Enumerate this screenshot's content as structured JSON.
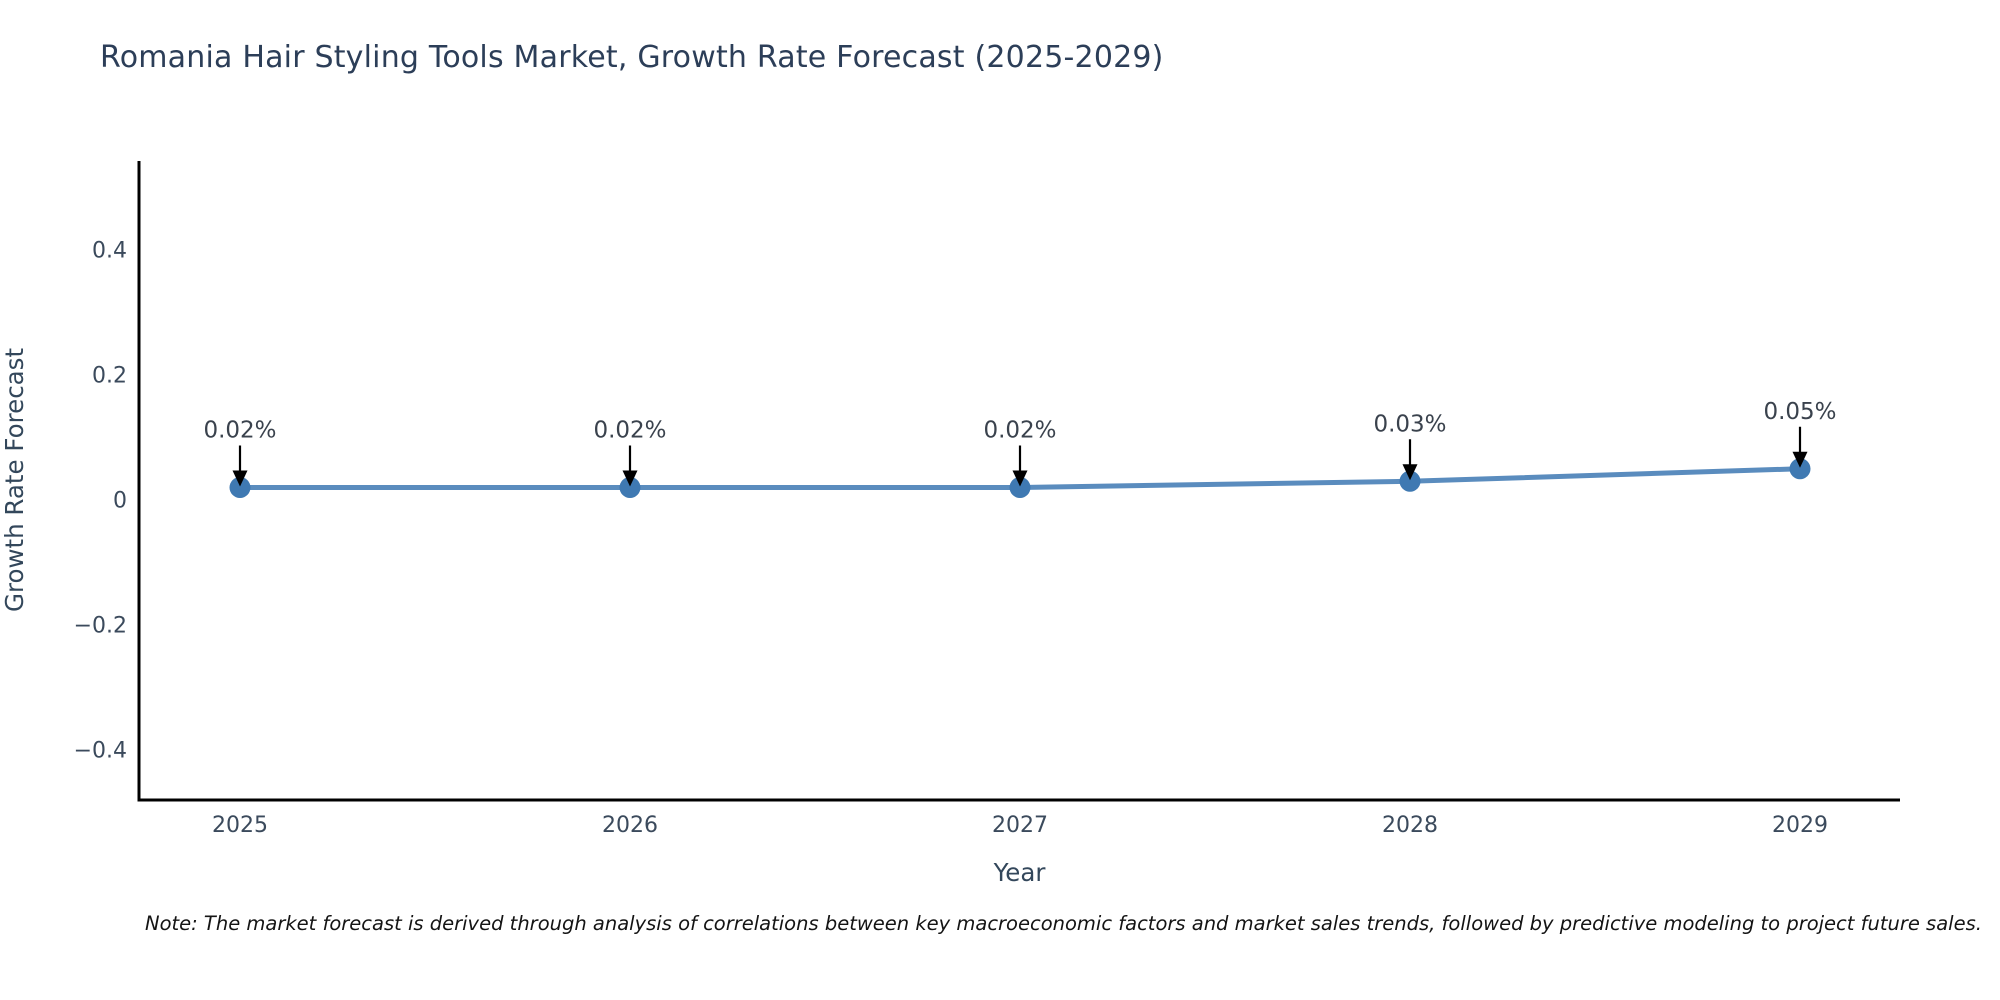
{
  "page": {
    "title": "Romania Hair Styling Tools Market, Growth Rate Forecast (2025-2029)",
    "note": "Note: The market forecast is derived through analysis of correlations between key macroeconomic factors and market sales trends, followed by predictive modeling to project future sales."
  },
  "chart_data": {
    "type": "line",
    "title": "Romania Hair Styling Tools Market, Growth Rate Forecast (2025-2029)",
    "xlabel": "Year",
    "ylabel": "Growth Rate Forecast",
    "categories": [
      "2025",
      "2026",
      "2027",
      "2028",
      "2029"
    ],
    "series": [
      {
        "name": "Growth Rate Forecast",
        "values": [
          0.02,
          0.02,
          0.02,
          0.03,
          0.05
        ],
        "point_labels": [
          "0.02%",
          "0.02%",
          "0.02%",
          "0.03%",
          "0.05%"
        ]
      }
    ],
    "ylim": [
      -0.48,
      0.5424
    ],
    "yticks": [
      0.4,
      0.2,
      0,
      -0.2,
      -0.4
    ],
    "ytick_labels": [
      "0.4",
      "0.2",
      "0",
      "−0.2",
      "−0.4"
    ],
    "grid": false,
    "legend_position": "none",
    "annotation_style": "down-arrow",
    "colors": {
      "line": "#5a8cbe",
      "marker": "#3f79b2",
      "axis_spine": "#000000",
      "arrow": "#000000",
      "title_text": "#2c3e58",
      "axis_label_text": "#33475b",
      "tick_text": "#3b4a5c",
      "annotation_text": "#3a424d",
      "note_text": "#141414",
      "background": "#ffffff"
    }
  }
}
